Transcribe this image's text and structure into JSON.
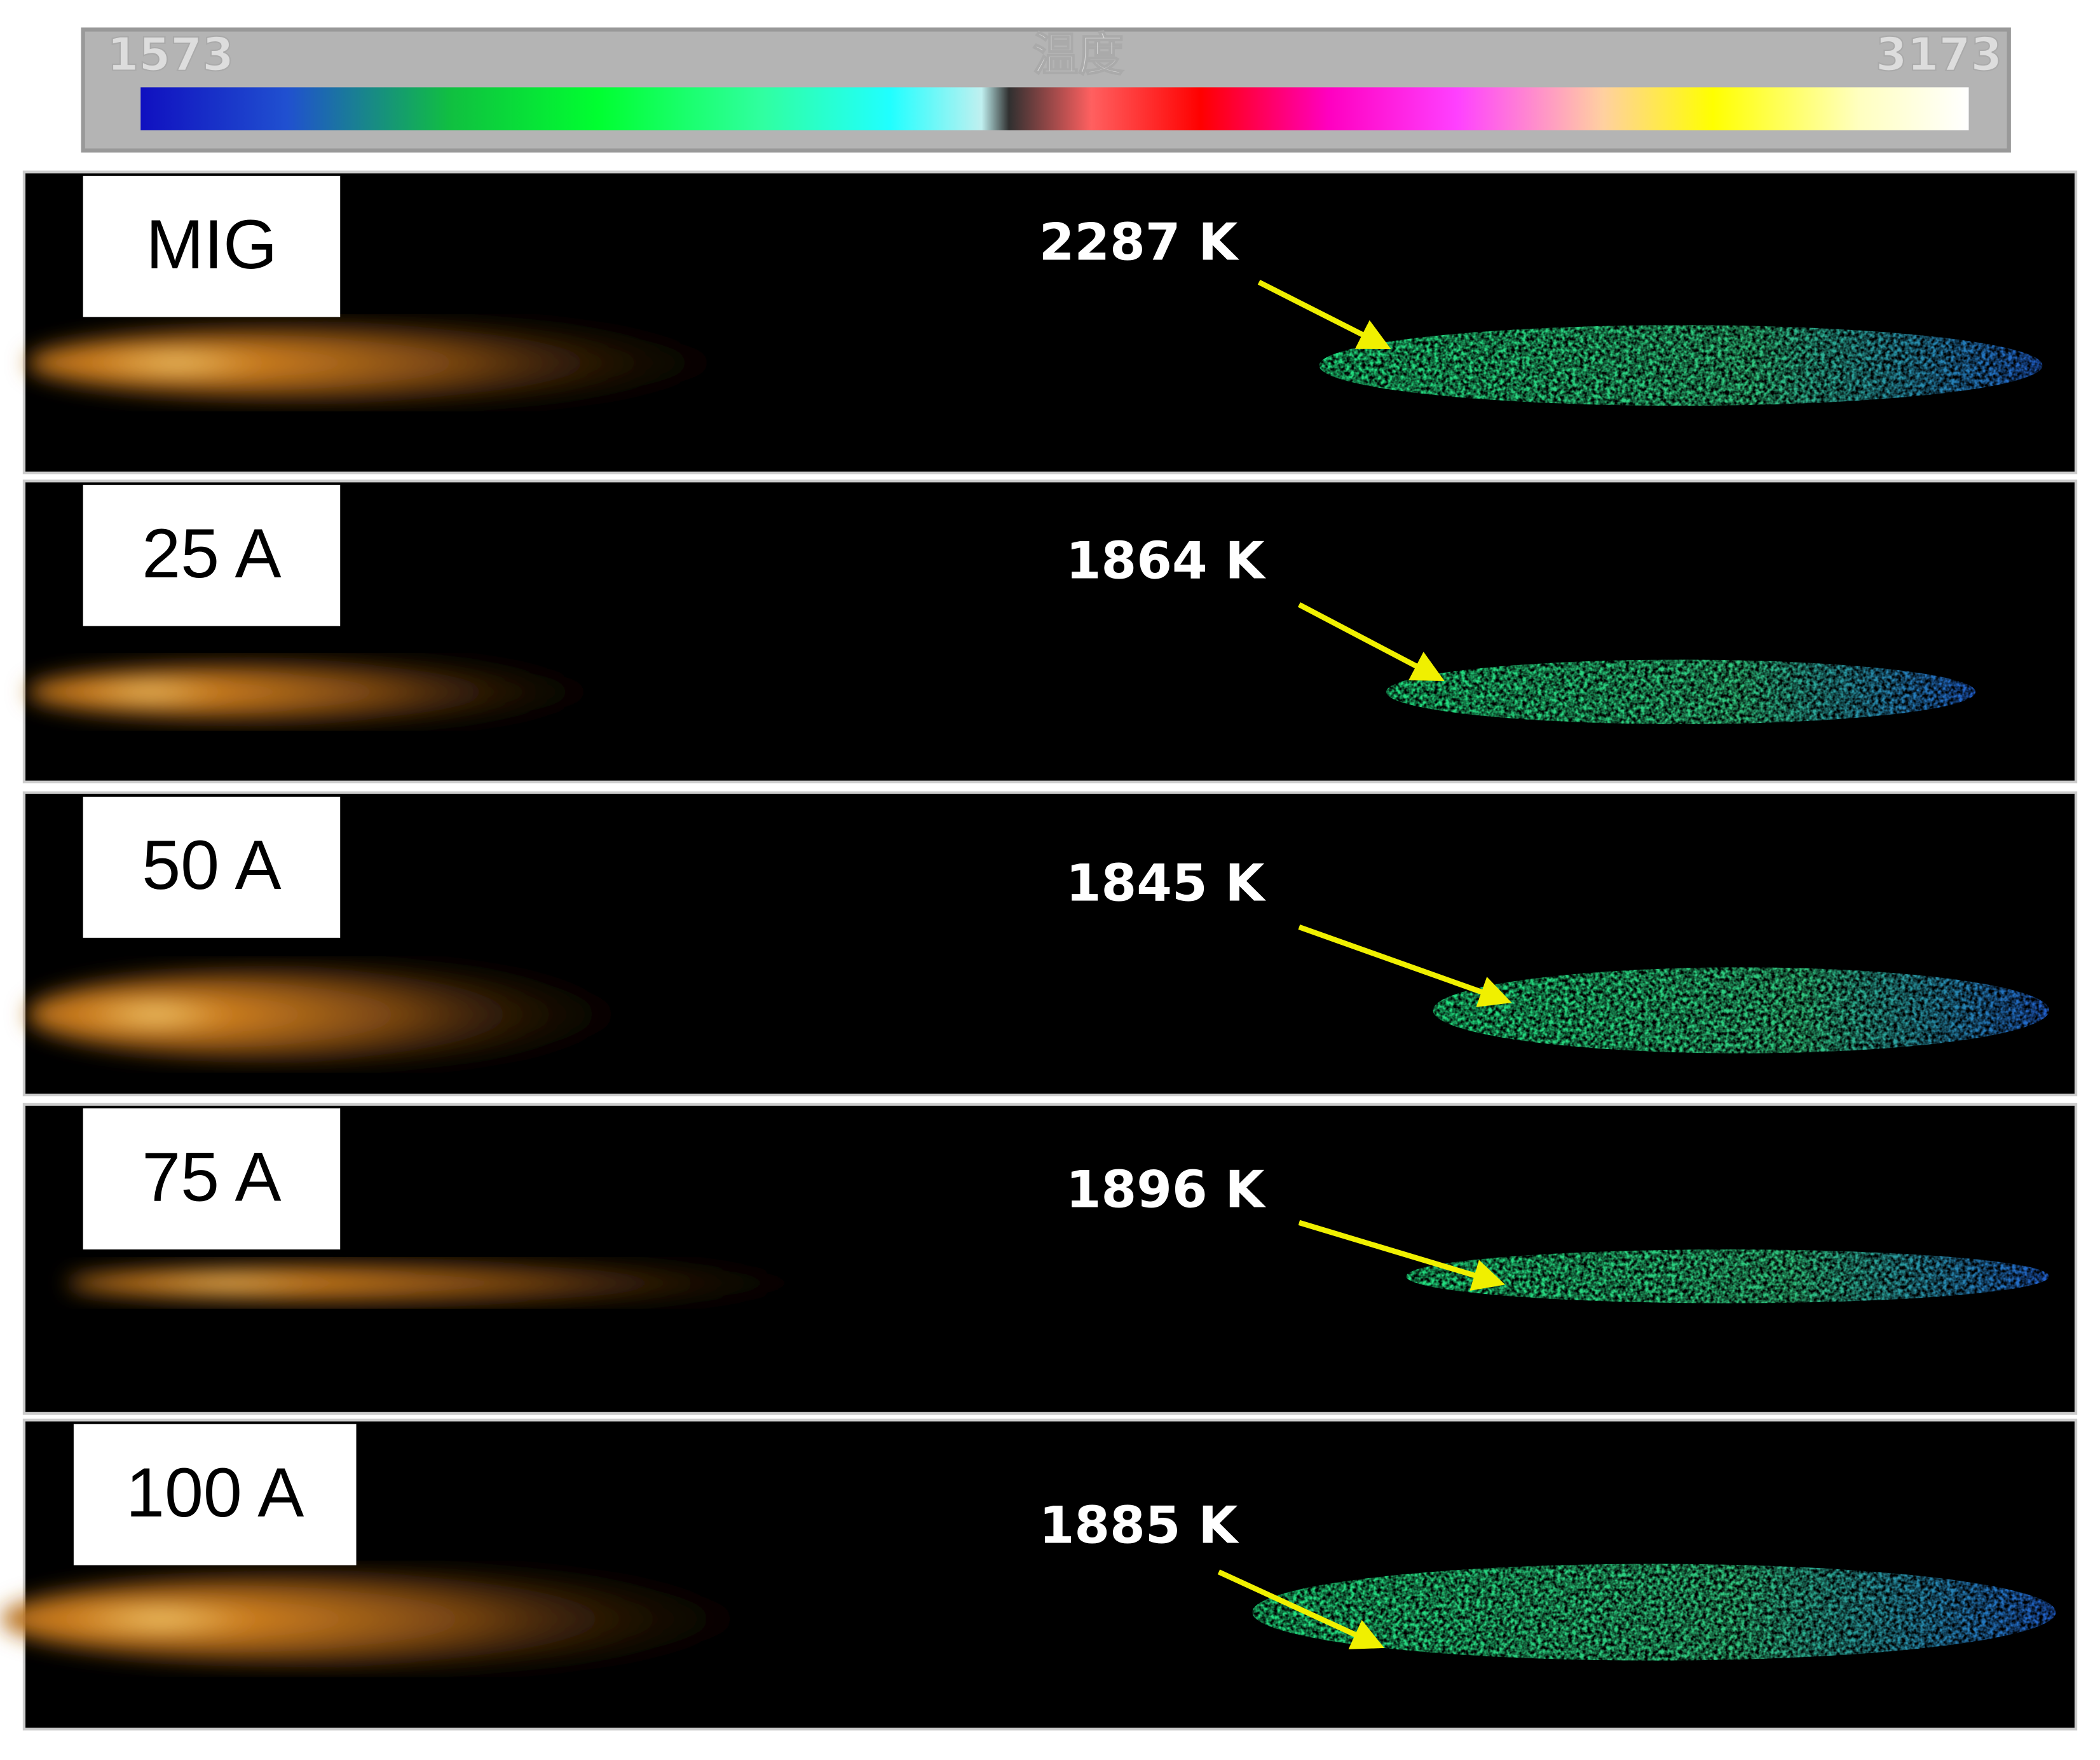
{
  "colorbar": {
    "min": 1573,
    "label": "温度",
    "max": 3173
  },
  "panels": [
    {
      "label": "MIG",
      "temperature": "2287 K"
    },
    {
      "label": "25 A",
      "temperature": "1864 K"
    },
    {
      "label": "50 A",
      "temperature": "1845 K"
    },
    {
      "label": "75 A",
      "temperature": "1896 K"
    },
    {
      "label": "100 A",
      "temperature": "1885 K"
    }
  ]
}
